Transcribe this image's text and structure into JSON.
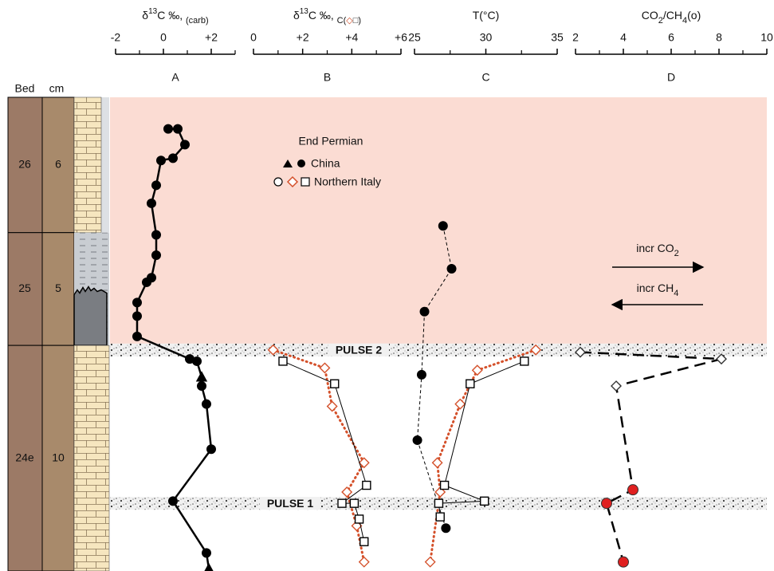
{
  "column": {
    "headers": [
      "Bed",
      "cm"
    ],
    "beds": [
      {
        "bed": "26",
        "cm": 6,
        "pattern": "limestone"
      },
      {
        "bed": "25",
        "cm": 5,
        "pattern": "shale"
      },
      {
        "bed": "24e",
        "cm": 10,
        "pattern": "limestone"
      }
    ]
  },
  "legend": {
    "title": "End Permian",
    "entries": [
      "China",
      "Northern Italy"
    ]
  },
  "pulses": [
    {
      "label": "PULSE 2",
      "height": 9.8
    },
    {
      "label": "PULSE 1",
      "height": 3.0
    }
  ],
  "arrows": [
    {
      "text": [
        {
          "text": "incr CO"
        },
        {
          "text": "2",
          "shift": "sub"
        }
      ],
      "direction": "right"
    },
    {
      "text": [
        {
          "text": "incr CH"
        },
        {
          "text": "4",
          "shift": "sub"
        }
      ],
      "direction": "left"
    }
  ],
  "chart_data": [
    {
      "type": "line",
      "label": "A",
      "title": [
        {
          "text": "δ"
        },
        {
          "text": "13",
          "shift": "sup"
        },
        {
          "text": "C ‰, "
        },
        {
          "text": "(carb)",
          "shift": "sub"
        }
      ],
      "xlim": [
        -2,
        3
      ],
      "xticks": [
        -2,
        0,
        {
          "value": 2,
          "label": "+2"
        }
      ],
      "minor_xticks": [
        -1,
        1,
        3
      ],
      "series": [
        {
          "color": "#000000",
          "line_style": "solid",
          "fill": "#000000",
          "stroke": "#000000",
          "markers": [
            "circle",
            "circle",
            "circle",
            "circle",
            "circle",
            "circle",
            "circle",
            "circle",
            "circle",
            "circle",
            "circle",
            "circle",
            "circle",
            "circle",
            "circle",
            "circle",
            "triangle",
            "circle",
            "circle",
            "circle",
            "circle",
            "circle",
            "triangle"
          ],
          "values": [
            0.2,
            0.6,
            0.9,
            0.4,
            -0.1,
            -0.3,
            -0.5,
            -0.3,
            -0.3,
            -0.5,
            -0.7,
            -1.1,
            -1.1,
            -1.1,
            1.1,
            1.4,
            1.6,
            1.6,
            1.8,
            2.0,
            0.4,
            1.8,
            1.9
          ],
          "heights": [
            19.6,
            19.6,
            18.9,
            18.3,
            18.2,
            17.1,
            16.3,
            14.9,
            14.0,
            13.0,
            12.8,
            11.9,
            11.3,
            10.4,
            9.4,
            9.3,
            8.6,
            8.2,
            7.4,
            5.4,
            3.1,
            0.8,
            0.1
          ]
        }
      ]
    },
    {
      "type": "line",
      "label": "B",
      "title": [
        {
          "text": "δ"
        },
        {
          "text": "13",
          "shift": "sup"
        },
        {
          "text": "C ‰, "
        },
        {
          "text": "C(",
          "shift": "sub"
        },
        {
          "text": "◇",
          "shift": "sub",
          "color": "#d4502a"
        },
        {
          "text": "□)",
          "shift": "sub"
        }
      ],
      "xlim": [
        0,
        6
      ],
      "xticks": [
        0,
        {
          "value": 2,
          "label": "+2"
        },
        {
          "value": 4,
          "label": "+4"
        },
        {
          "value": 6,
          "label": "+6"
        }
      ],
      "minor_xticks": [
        1,
        3,
        5
      ],
      "series": [
        {
          "color": "#d4502a",
          "line_style": "dotted",
          "marker": "diamond",
          "fill": "#ffffff",
          "stroke": "#d4502a",
          "values": [
            0.8,
            2.9,
            3.2,
            4.5,
            3.8,
            4.2,
            4.5
          ],
          "heights": [
            9.8,
            9.0,
            7.3,
            4.8,
            3.5,
            2.0,
            0.4
          ]
        },
        {
          "color": "#000000",
          "line_style": "thin",
          "marker": "square",
          "fill": "#ffffff",
          "stroke": "#000000",
          "values": [
            1.2,
            3.3,
            4.6,
            3.6,
            4.1,
            4.3,
            4.5
          ],
          "heights": [
            9.3,
            8.3,
            3.8,
            3.0,
            3.0,
            2.3,
            1.3
          ]
        }
      ]
    },
    {
      "type": "line",
      "label": "C",
      "title": [
        {
          "text": "T(°C)"
        }
      ],
      "xlim": [
        25,
        35
      ],
      "xticks": [
        25,
        30,
        35
      ],
      "minor_xticks": [
        27.5,
        32.5
      ],
      "series": [
        {
          "color": "#000000",
          "line_style": "dashed",
          "marker": "circle",
          "fill": "#000000",
          "stroke": "#000000",
          "values": [
            27.0,
            27.6,
            25.7,
            25.5,
            25.2,
            27.2
          ],
          "heights": [
            15.3,
            13.4,
            11.5,
            8.7,
            5.8,
            1.9
          ]
        },
        {
          "color": "#d4502a",
          "line_style": "dotted",
          "marker": "diamond",
          "fill": "#ffffff",
          "stroke": "#d4502a",
          "values": [
            33.5,
            29.4,
            28.2,
            26.6,
            26.8,
            26.1
          ],
          "heights": [
            9.8,
            8.9,
            7.4,
            4.8,
            3.5,
            0.4
          ]
        },
        {
          "color": "#000000",
          "line_style": "thin",
          "marker": "square",
          "fill": "#ffffff",
          "stroke": "#000000",
          "values": [
            32.7,
            28.9,
            27.1,
            29.9,
            26.7,
            26.8
          ],
          "heights": [
            9.3,
            8.3,
            3.8,
            3.1,
            3.0,
            2.4
          ]
        }
      ]
    },
    {
      "type": "line",
      "label": "D",
      "title": [
        {
          "text": "CO"
        },
        {
          "text": "2",
          "shift": "sub"
        },
        {
          "text": "/CH"
        },
        {
          "text": "4",
          "shift": "sub"
        },
        {
          "text": "(o)"
        }
      ],
      "xlim": [
        2,
        10
      ],
      "xticks": [
        2,
        4,
        6,
        8,
        10
      ],
      "minor_xticks": [
        3,
        5,
        7,
        9
      ],
      "series": [
        {
          "color": "#000000",
          "line_style": "longdash",
          "stroke": "#333333",
          "markers": [
            "diamond",
            "diamond",
            "diamond",
            "circle",
            "circle",
            "circle"
          ],
          "marker_fills": [
            "#ffffff",
            "#ffffff",
            "#ffffff",
            "#e02020",
            "#e02020",
            "#e02020"
          ],
          "values": [
            2.2,
            8.1,
            3.7,
            4.4,
            3.3,
            4.0
          ],
          "heights": [
            9.7,
            9.4,
            8.2,
            3.6,
            3.0,
            0.4
          ]
        }
      ]
    }
  ]
}
